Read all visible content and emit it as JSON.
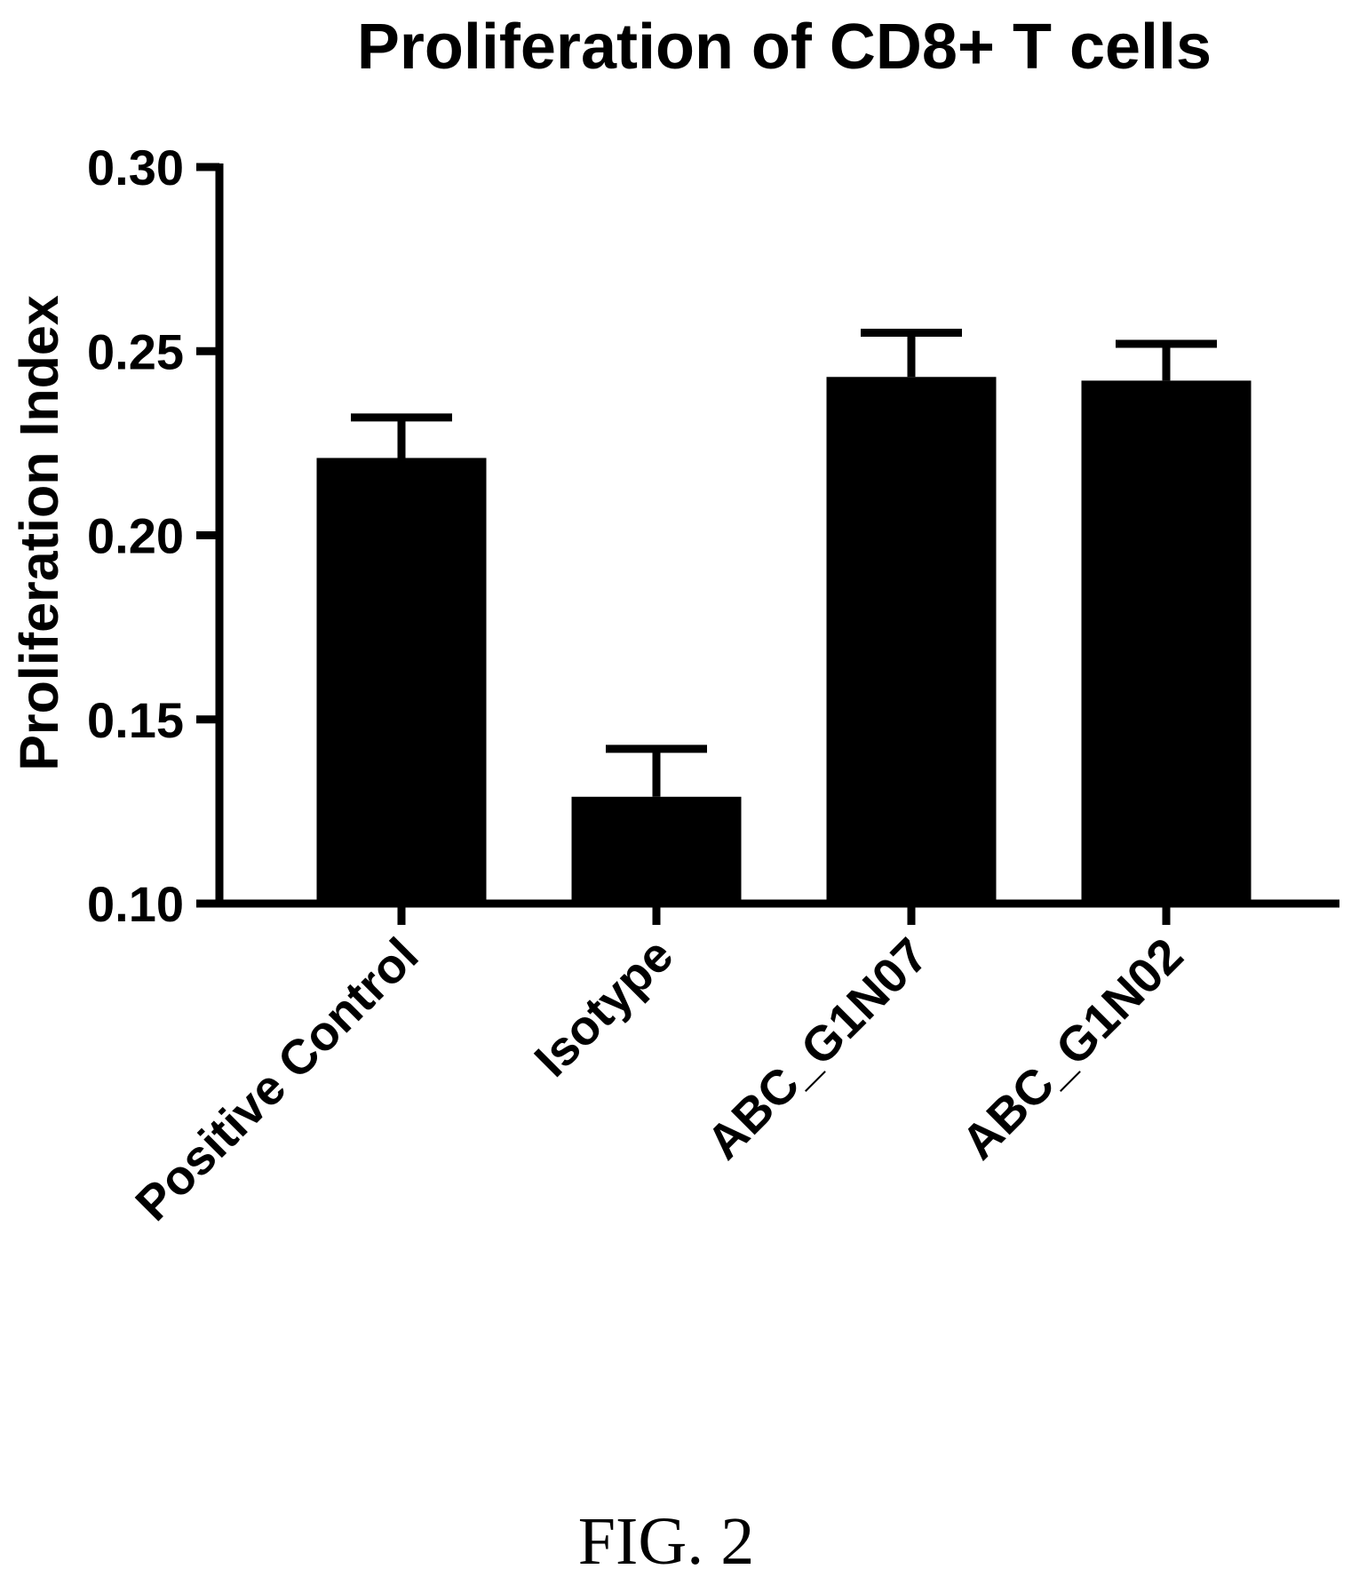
{
  "chart_data": {
    "type": "bar",
    "title": "Proliferation of CD8+ T cells",
    "xlabel": "",
    "ylabel": "Proliferation Index",
    "categories": [
      "Positive Control",
      "Isotype",
      "ABC_G1N07",
      "ABC_G1N02"
    ],
    "values": [
      0.221,
      0.129,
      0.243,
      0.242
    ],
    "error_upper": [
      0.232,
      0.142,
      0.255,
      0.252
    ],
    "ylim": [
      0.1,
      0.3
    ],
    "yticks": [
      "0.10",
      "0.15",
      "0.20",
      "0.25",
      "0.30"
    ],
    "ytick_values": [
      0.1,
      0.15,
      0.2,
      0.25,
      0.3
    ],
    "grid": false,
    "legend": "none",
    "bar_color": "#000000"
  },
  "caption": "FIG. 2"
}
